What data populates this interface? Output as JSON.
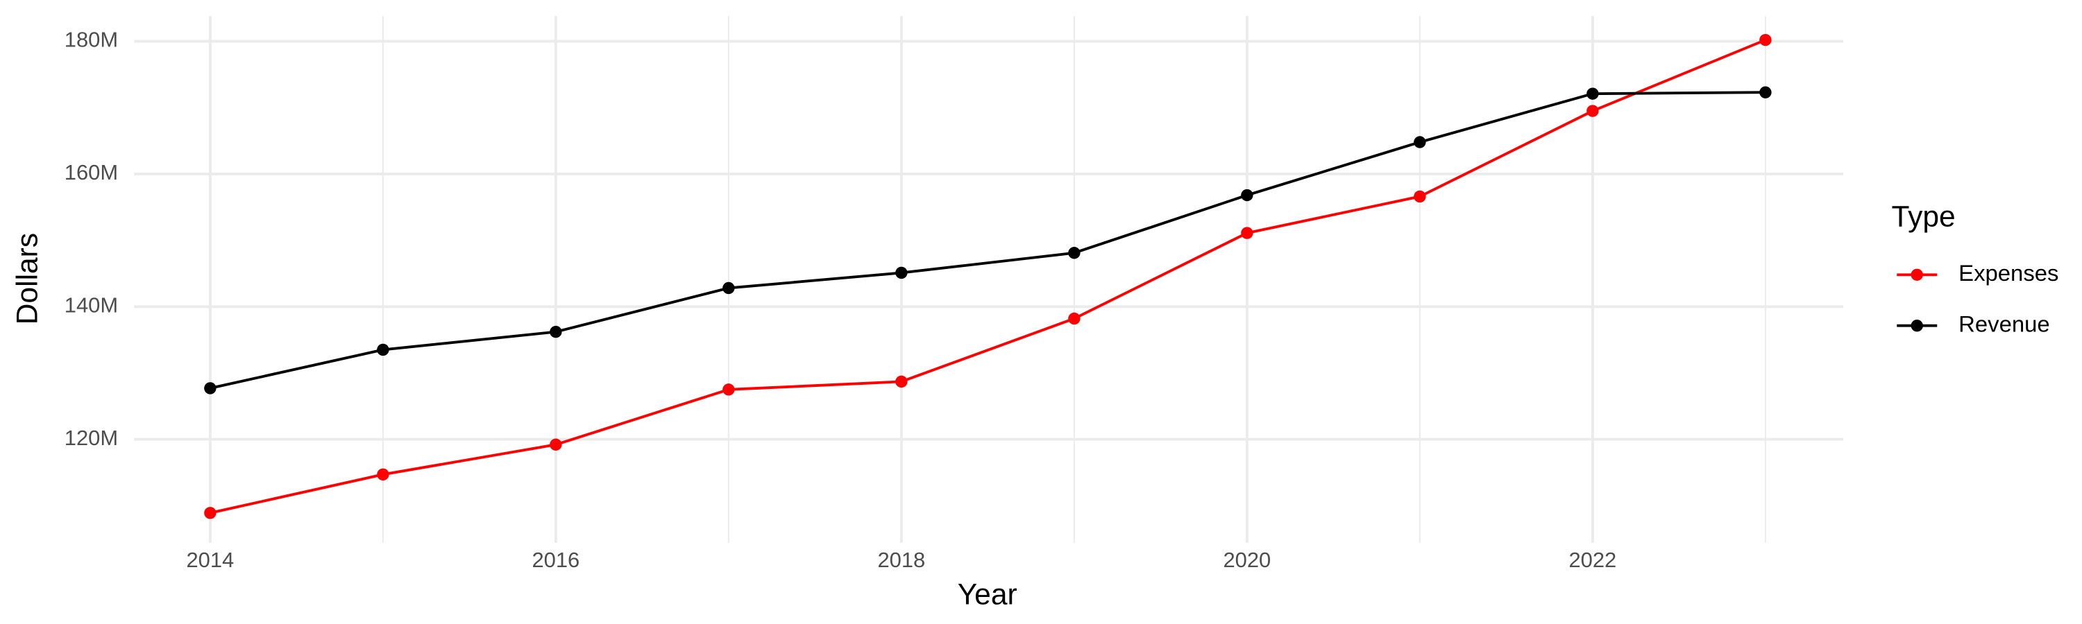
{
  "chart_data": {
    "type": "line",
    "x_label": "Year",
    "y_label": "Dollars",
    "legend_title": "Type",
    "x": [
      2014,
      2015,
      2016,
      2017,
      2018,
      2019,
      2020,
      2021,
      2022,
      2023
    ],
    "series": [
      {
        "name": "Expenses",
        "color": "#ff0000",
        "values": [
          108900000,
          114700000,
          119200000,
          127500000,
          128700000,
          138200000,
          151100000,
          156600000,
          169500000,
          180200000
        ]
      },
      {
        "name": "Revenue",
        "color": "#000000",
        "values": [
          127700000,
          133500000,
          136200000,
          142800000,
          145100000,
          148100000,
          156800000,
          164800000,
          172100000,
          172300000
        ]
      }
    ],
    "xlim": [
      2013.56,
      2023.45
    ],
    "xticks": [
      2014,
      2016,
      2018,
      2020,
      2022
    ],
    "ylim": [
      104400000,
      183800000
    ],
    "yticks": [
      {
        "value": 120000000,
        "label": "120M"
      },
      {
        "value": 140000000,
        "label": "140M"
      },
      {
        "value": 160000000,
        "label": "160M"
      },
      {
        "value": 180000000,
        "label": "180M"
      }
    ],
    "grid": true,
    "legend_position": "right"
  }
}
